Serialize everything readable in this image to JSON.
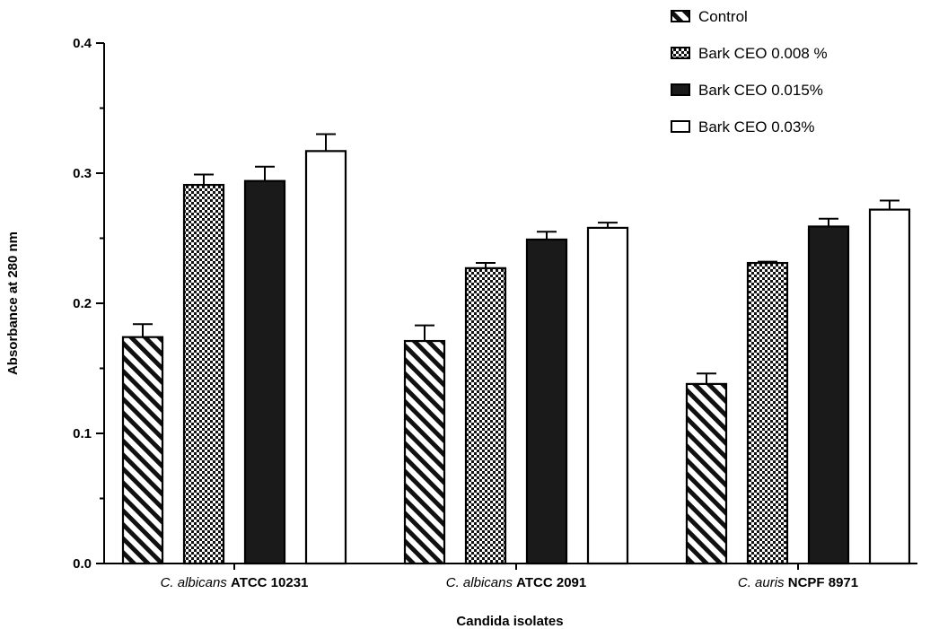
{
  "chart_data": {
    "type": "bar",
    "xlabel": "Candida isolates",
    "ylabel": "Absorbance at 280 nm",
    "ylim": [
      0,
      0.4
    ],
    "yticks": [
      "0.0",
      "0.1",
      "0.2",
      "0.3",
      "0.4"
    ],
    "categories": [
      {
        "italic": "C. albicans",
        "bold": "ATCC 10231"
      },
      {
        "italic": "C. albicans",
        "bold": "ATCC 2091"
      },
      {
        "italic": "C. auris",
        "bold": "NCPF 8971"
      }
    ],
    "series": [
      {
        "name": "Control",
        "pattern": "hatch",
        "values": [
          0.174,
          0.171,
          0.138
        ],
        "errors": [
          0.01,
          0.012,
          0.008
        ]
      },
      {
        "name": "Bark CEO 0.008 %",
        "pattern": "checker",
        "values": [
          0.291,
          0.227,
          0.231
        ],
        "errors": [
          0.008,
          0.004,
          0.001
        ]
      },
      {
        "name": "Bark CEO 0.015%",
        "pattern": "solid",
        "values": [
          0.294,
          0.249,
          0.259
        ],
        "errors": [
          0.011,
          0.006,
          0.006
        ]
      },
      {
        "name": "Bark CEO 0.03%",
        "pattern": "empty",
        "values": [
          0.317,
          0.258,
          0.272
        ],
        "errors": [
          0.013,
          0.004,
          0.007
        ]
      }
    ],
    "legend_position": "top-right",
    "grid": false,
    "colors": {
      "bar_fill": "#1a1a1a",
      "stroke": "#000000",
      "background": "#ffffff"
    }
  }
}
